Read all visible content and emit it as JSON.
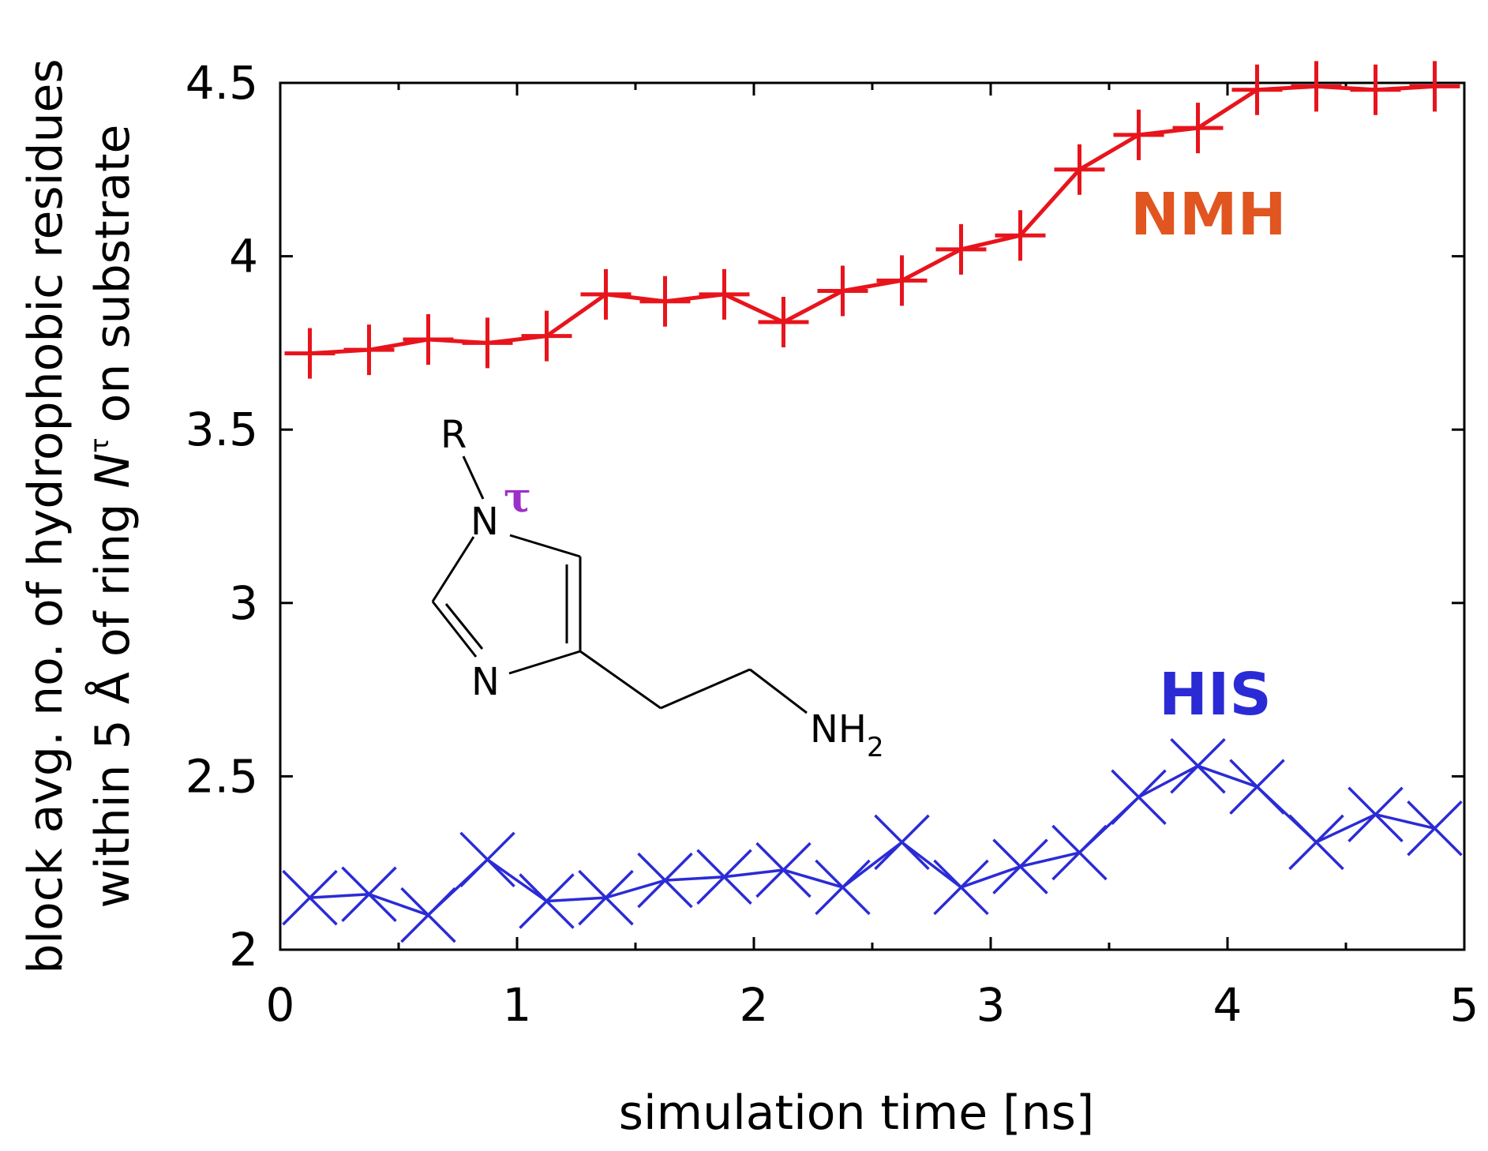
{
  "chart_data": {
    "type": "line",
    "xlabel": "simulation time [ns]",
    "ylabel_line1": "block avg. no. of hydrophobic residues",
    "ylabel_line2_a": "within 5 Å of ring ",
    "ylabel_line2_n": "N",
    "ylabel_line2_tau": "τ",
    "ylabel_line2_b": " on substrate",
    "xlim": [
      0,
      5
    ],
    "ylim": [
      2,
      4.5
    ],
    "xticks": [
      0,
      1,
      2,
      3,
      4,
      5
    ],
    "xtick_labels": [
      "0",
      "1",
      "2",
      "3",
      "4",
      "5"
    ],
    "yticks": [
      2,
      2.5,
      3,
      3.5,
      4,
      4.5
    ],
    "ytick_labels": [
      "2",
      "2.5",
      "3",
      "3.5",
      "4",
      "4.5"
    ],
    "x": [
      0.125,
      0.375,
      0.625,
      0.875,
      1.125,
      1.375,
      1.625,
      1.875,
      2.125,
      2.375,
      2.625,
      2.875,
      3.125,
      3.375,
      3.625,
      3.875,
      4.125,
      4.375,
      4.625,
      4.875
    ],
    "series": [
      {
        "name": "NMH",
        "marker": "plus",
        "color": "#e8141c",
        "values": [
          3.72,
          3.73,
          3.76,
          3.75,
          3.77,
          3.89,
          3.87,
          3.89,
          3.81,
          3.9,
          3.93,
          4.02,
          4.06,
          4.25,
          4.35,
          4.37,
          4.48,
          4.49,
          4.48,
          4.49
        ]
      },
      {
        "name": "HIS",
        "marker": "cross",
        "color": "#2b2bd6",
        "values": [
          2.15,
          2.16,
          2.1,
          2.26,
          2.14,
          2.15,
          2.2,
          2.21,
          2.23,
          2.18,
          2.31,
          2.18,
          2.24,
          2.28,
          2.44,
          2.53,
          2.47,
          2.31,
          2.39,
          2.35
        ]
      }
    ],
    "series_labels": {
      "nmh": "NMH",
      "his": "HIS",
      "nmh_color": "#e05520",
      "his_color": "#2b2bd6"
    }
  },
  "molecule": {
    "r_label": "R",
    "n1_label": "N",
    "tau_label": "τ",
    "tau_color": "#9b30c8",
    "n3_label": "N",
    "nh_label": "NH",
    "sub_label": "2"
  }
}
